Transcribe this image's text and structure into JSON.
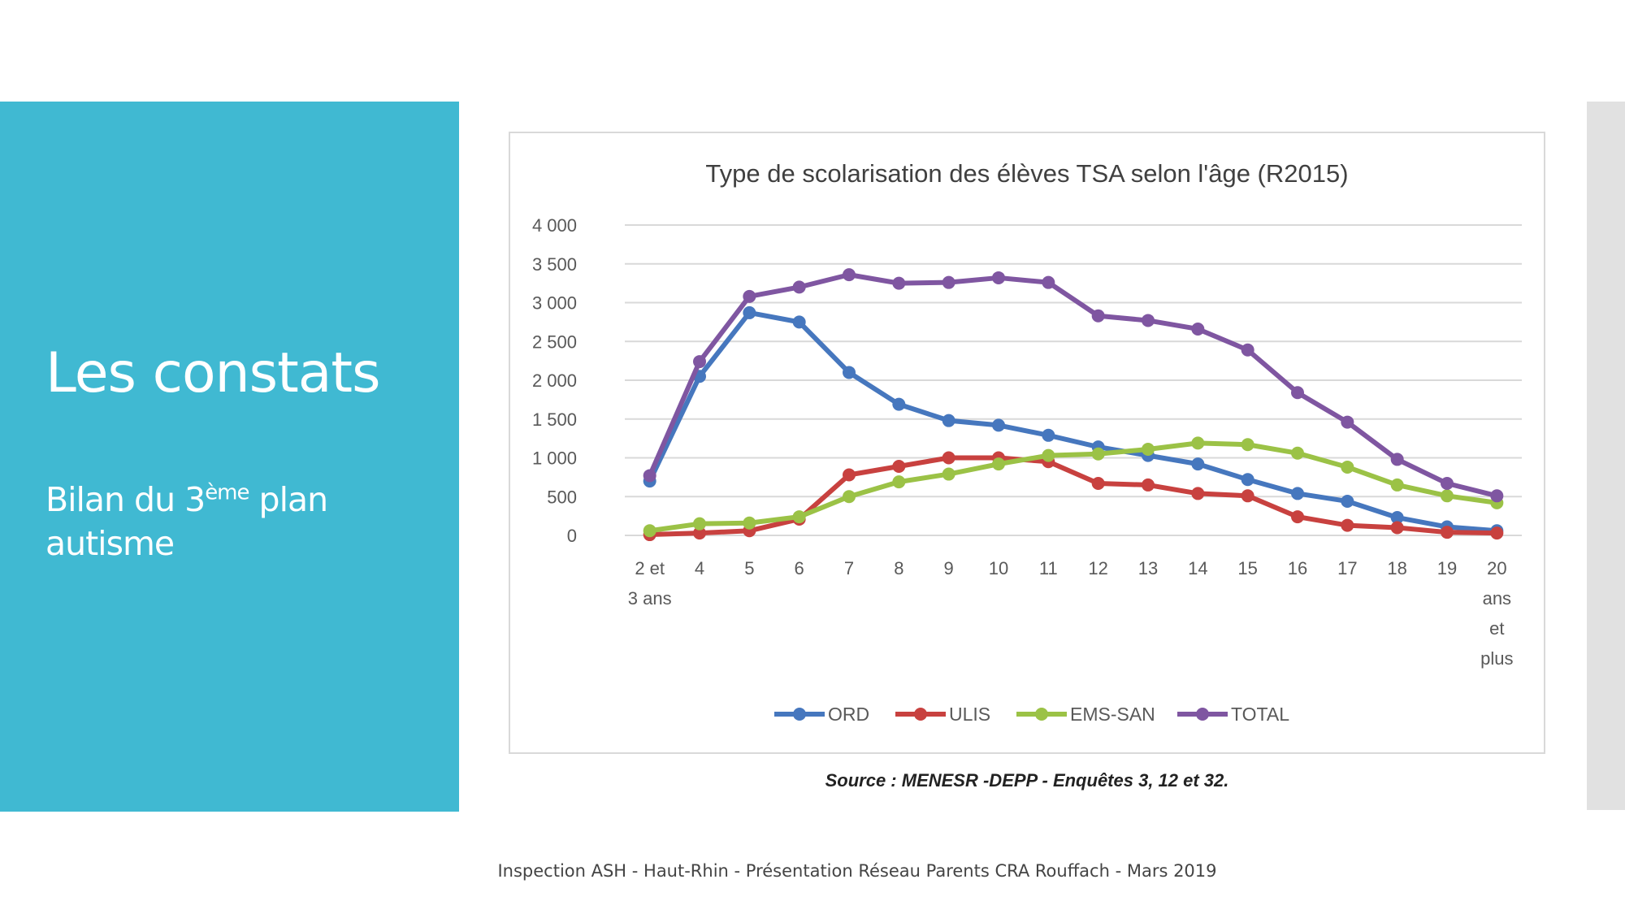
{
  "slide": {
    "title": "Les constats",
    "subtitle_part1": "Bilan du 3",
    "subtitle_sup": "ème",
    "subtitle_part2": " plan autisme",
    "source": "Source : MENESR -DEPP - Enquêtes 3, 12 et 32.",
    "footer": "Inspection ASH - Haut-Rhin - Présentation Réseau Parents CRA Rouffach - Mars 2019"
  },
  "colors": {
    "panel": "#40B9D2",
    "ORD": "#4677BE",
    "ULIS": "#C8413F",
    "EMS-SAN": "#9BC246",
    "TOTAL": "#7F56A1"
  },
  "chart_data": {
    "type": "line",
    "title": "Type de scolarisation des élèves TSA selon l'âge (R2015)",
    "categories": [
      [
        "2 et",
        "3 ans"
      ],
      [
        "4"
      ],
      [
        "5"
      ],
      [
        "6"
      ],
      [
        "7"
      ],
      [
        "8"
      ],
      [
        "9"
      ],
      [
        "10"
      ],
      [
        "11"
      ],
      [
        "12"
      ],
      [
        "13"
      ],
      [
        "14"
      ],
      [
        "15"
      ],
      [
        "16"
      ],
      [
        "17"
      ],
      [
        "18"
      ],
      [
        "19"
      ],
      [
        "20",
        "ans",
        "et",
        "plus"
      ]
    ],
    "ylim": [
      0,
      4000
    ],
    "yticks": [
      0,
      500,
      1000,
      1500,
      2000,
      2500,
      3000,
      3500,
      4000
    ],
    "ytick_labels": [
      "0",
      "500",
      "1 000",
      "1 500",
      "2 000",
      "2 500",
      "3 000",
      "3 500",
      "4 000"
    ],
    "grid": true,
    "legend": "bottom",
    "series": [
      {
        "name": "ORD",
        "values": [
          700,
          2050,
          2870,
          2750,
          2100,
          1690,
          1480,
          1420,
          1290,
          1140,
          1030,
          920,
          720,
          540,
          440,
          230,
          110,
          60
        ]
      },
      {
        "name": "ULIS",
        "values": [
          10,
          30,
          60,
          210,
          780,
          890,
          1000,
          1000,
          950,
          670,
          650,
          540,
          510,
          240,
          130,
          100,
          40,
          30
        ]
      },
      {
        "name": "EMS-SAN",
        "values": [
          60,
          150,
          160,
          240,
          500,
          690,
          790,
          920,
          1030,
          1050,
          1110,
          1190,
          1170,
          1060,
          880,
          650,
          510,
          420
        ]
      },
      {
        "name": "TOTAL",
        "values": [
          770,
          2240,
          3080,
          3200,
          3360,
          3250,
          3260,
          3320,
          3260,
          2830,
          2770,
          2660,
          2390,
          1840,
          1460,
          980,
          670,
          510
        ]
      }
    ]
  }
}
